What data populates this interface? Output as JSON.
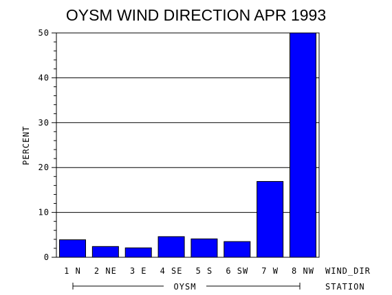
{
  "chart_data": {
    "type": "bar",
    "title": "OYSM WIND DIRECTION APR 1993",
    "ylabel": "PERCENT",
    "xlabel": "WIND_DIR",
    "group_axis_label": "STATION",
    "group_label": "OYSM",
    "categories": [
      "1 N",
      "2 NE",
      "3 E",
      "4 SE",
      "5 S",
      "6 SW",
      "7 W",
      "8 NW"
    ],
    "values": [
      3.9,
      2.4,
      2.1,
      4.6,
      4.1,
      3.5,
      16.9,
      50.0
    ],
    "ylim": [
      0,
      50
    ],
    "yticks": [
      0,
      10,
      20,
      30,
      40,
      50
    ],
    "ytick_labels": [
      "0",
      "10",
      "20",
      "30",
      "40",
      "50"
    ],
    "grid": true,
    "bar_color": "#0000ff"
  }
}
